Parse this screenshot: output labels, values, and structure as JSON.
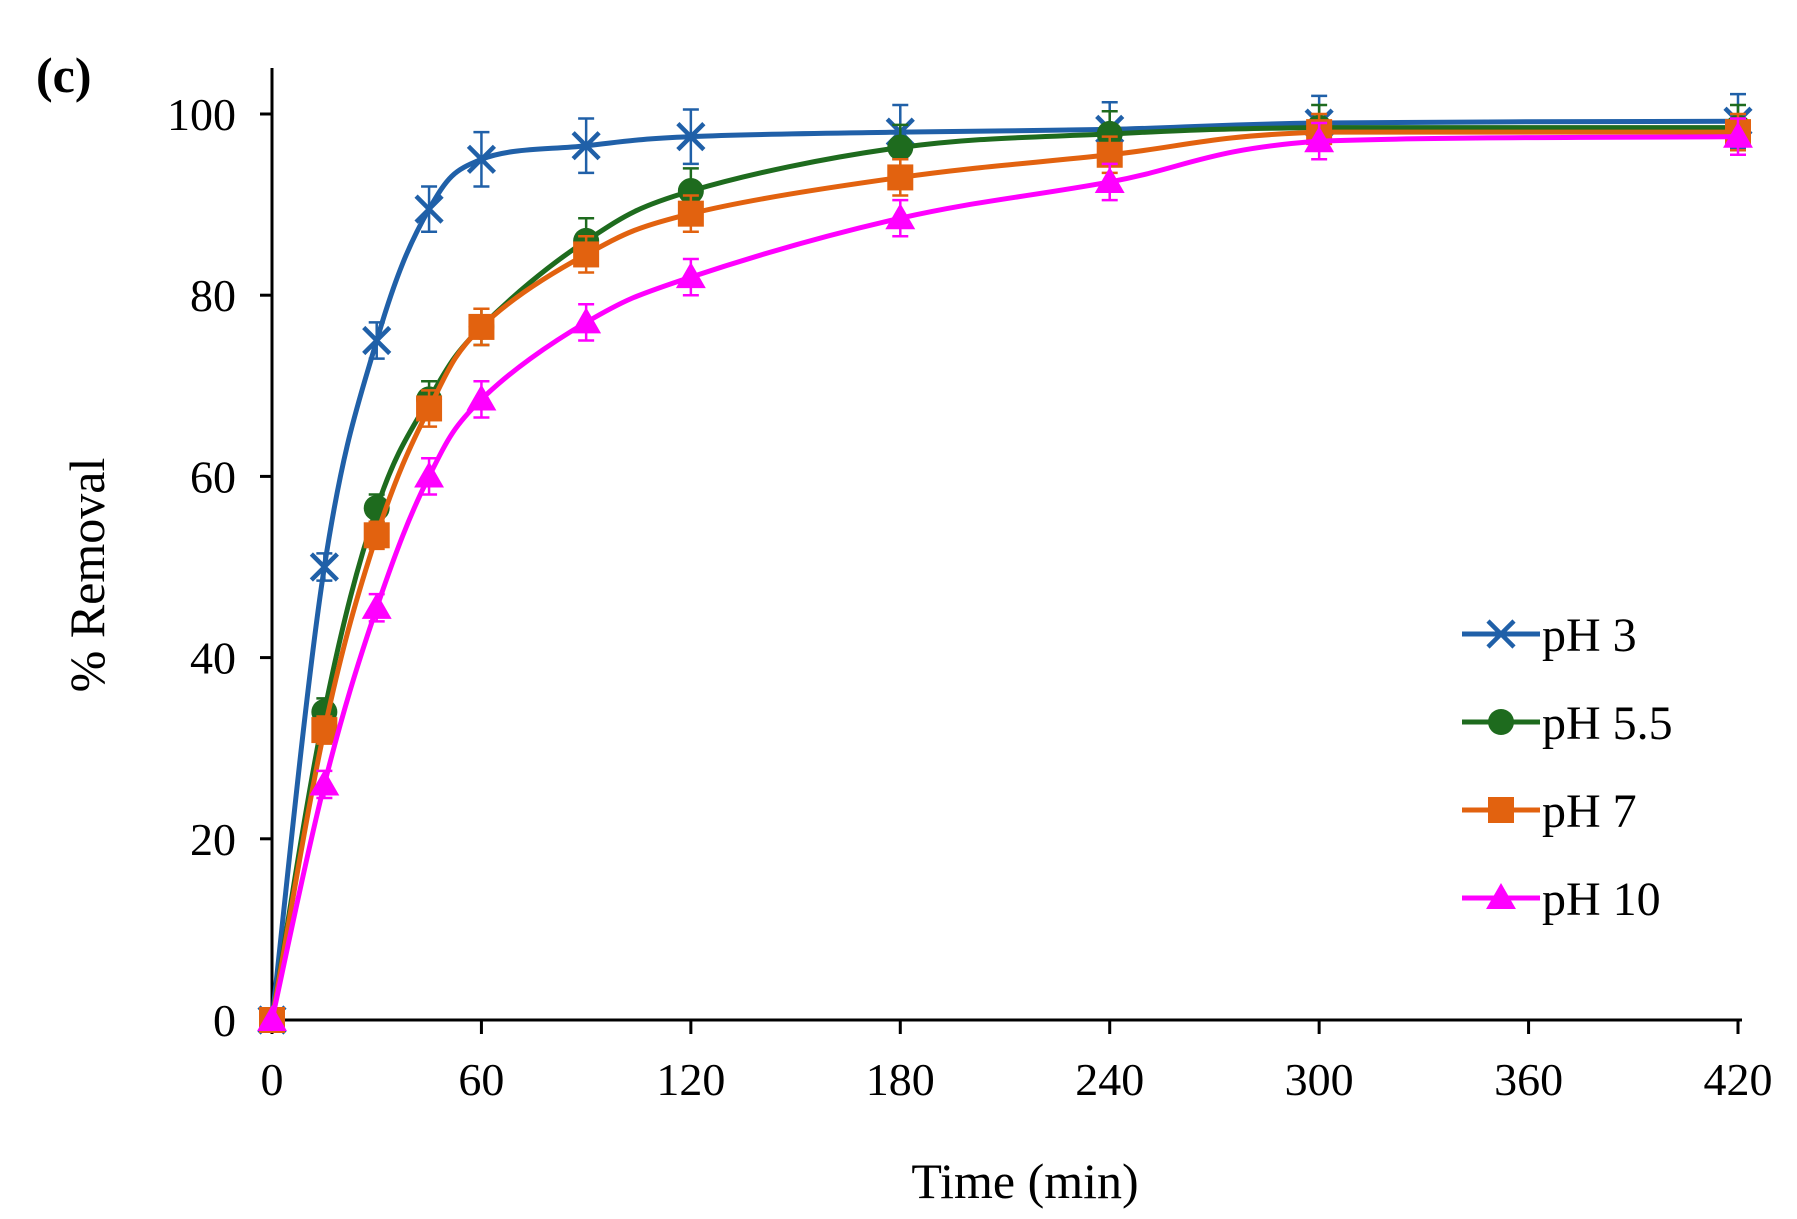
{
  "chart_data": {
    "type": "line",
    "panel_label": "(c)",
    "xlabel": "Time (min)",
    "ylabel": "% Removal",
    "xlim": [
      0,
      420
    ],
    "ylim": [
      0,
      100
    ],
    "xticks": [
      0,
      60,
      120,
      180,
      240,
      300,
      360,
      420
    ],
    "yticks": [
      0,
      20,
      40,
      60,
      80,
      100
    ],
    "x": [
      0,
      15,
      30,
      45,
      60,
      90,
      120,
      180,
      240,
      300,
      420
    ],
    "legend_position": "bottom-right",
    "series": [
      {
        "name": "pH 3",
        "color": "#2060A8",
        "marker": "x",
        "values": [
          0,
          50,
          75,
          89.5,
          95,
          96.5,
          97.5,
          98,
          98.3,
          99,
          99.2
        ],
        "errors": [
          0,
          1.5,
          2,
          2.5,
          3,
          3,
          3,
          3,
          3,
          3,
          3
        ]
      },
      {
        "name": "pH 5.5",
        "color": "#1E6B1E",
        "marker": "circle",
        "values": [
          0,
          34,
          56.5,
          68.5,
          76.5,
          86,
          91.5,
          96.3,
          97.8,
          98.5,
          98.5
        ],
        "errors": [
          0,
          1.5,
          1.5,
          2,
          2,
          2.5,
          2.5,
          2.5,
          2.5,
          2.5,
          2.5
        ]
      },
      {
        "name": "pH 7",
        "color": "#E2620F",
        "marker": "square",
        "values": [
          0,
          32,
          53.5,
          67.5,
          76.5,
          84.5,
          89,
          93,
          95.5,
          98,
          98
        ],
        "errors": [
          0,
          1.5,
          1.5,
          2,
          2,
          2,
          2,
          2,
          2,
          2,
          2
        ]
      },
      {
        "name": "pH 10",
        "color": "#FF00FF",
        "marker": "triangle",
        "values": [
          0,
          26,
          45.5,
          60,
          68.5,
          77,
          82,
          88.5,
          92.5,
          97,
          97.5
        ],
        "errors": [
          0,
          1.5,
          1.5,
          2,
          2,
          2,
          2,
          2,
          2,
          2,
          2
        ]
      }
    ]
  }
}
